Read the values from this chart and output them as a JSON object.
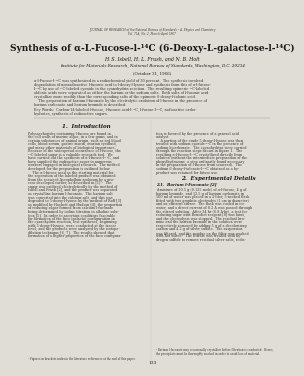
{
  "page_bg": "#e0ddd6",
  "journal_header": "JOURNAL OF RESEARCH of the National Bureau of Standards – A. Physics and Chemistry",
  "journal_subheader": "Vol. 71A, No. 2, March–April 1967",
  "title": "Synthesis of α-L-Fucose-l-¹⁴C (6-Deoxy-L-galactose-l-¹⁴C)",
  "authors": "H. S. Isbell, H. L. Frush, and N. B. Holt",
  "affiliation": "Institute for Materials Research, National Bureau of Standards, Washington, D.C. 20234",
  "date": "(October 31, 1966)",
  "abstract_lines": [
    "α-l-Fucose-l-¹⁴C was synthesized in a radiochemical yield of 30 percent.  The synthesis involved",
    "degradation of nonradioactive l-fuconic acid to l-deoxy-l-lyxose and synthesis from this of α-l-fucose-",
    "l-¹⁴C by use of ¹⁴C-labeled cyanide in the cyanohydrin reaction.  The resulting epimeric ¹⁴C-labeled",
    "aldonic acids were separated as either the barium or the sodium salts.  Both salts of l-fuconic acid",
    "crystallize more readily than the corresponding salts of the epimeric 6-deoxy-l-talonic acid.",
    "    The preparation of barium l-fuconate by the electrolytic oxidation of l-fucose in the presence of",
    "barium carbonate and barium bromide is described."
  ],
  "keywords_line1": "Key Words:  Carbon-14-labeled l-fucose, l-fuconic acid-l-¹⁴C, l-fucose-l-¹⁴C, radioactive carbo-",
  "keywords_line2": "hydrates, synthesis of radioactive sugars.",
  "sec1_title": "1.  Introduction",
  "col1_lines": [
    "Polysaccharides containing l-fucose are found in",
    "the cell walls of marine algae, in a few gums, and in",
    "certain substances of animal origin, such as red blood",
    "cells, blood serum, gastric mucin, ovarian cystfluid,",
    "and many other materials of biological importance.",
    "Because of the widespread occurrence of l-fucose, the",
    "¹⁴C-labeled sugar is a valuable research tool.  We",
    "have carried out the synthesis of α-l-fucose-l-¹⁴C, and",
    "have supplied the radioactive sugar to numerous",
    "workers engaged in biological research.  The method",
    "developed for the preparation is outlined below.",
    "    The α-l-fucose used as the starting material for",
    "the separation of the labeled product was obtained",
    "from the seaweed Ascophyllum nodosum by a pro-",
    "cess developed earlier, as described in [1].¹  The",
    "sugar was oxidized electrolytically by the method of",
    "Isbell and Frush [2], and the product was separated",
    "as crystalline barium l-fuconate.  The barium salt",
    "was converted into the calcium salt, and this was",
    "degraded to 5-deoxy-l-lyxose by the method of Ruff [3]",
    "as modified by Hackett and Hudson [4], the proportion",
    "of reducing sugar formed from calcium l-fuconate",
    "being determined by iodine titration in alkaline solu-",
    "tion [5].  In order to ascertain conditions favorable",
    "for formation of the fuco (galacto) configuration in",
    "the cyanohydrin reaction, test syntheses, beginning",
    "with 5-deoxy-l-lyxose, were conducted at the tracer",
    "level, and the products were analyzed by the isotope-",
    "dilution technique [6, 7].  The results showed that",
    "formation of a higher proportion of the fuco configura-"
  ],
  "col1_footnote": "¹ Figures in brackets indicate the literature references at the end of this paper.",
  "col2_lines_top": [
    "tion is favored by the presence of a general acid",
    "catalyst.",
    "    A portion of the crude 5-deoxy-l-lyxose was then",
    "treated with sodium cyanide-¹⁴C in the presence of",
    "sodium bicarbonate.  The cyanohydrins were carried",
    "through the reaction steps shown in figure 1.  The",
    "resulting α-l-fucose-l-¹⁴C crystallized directly from",
    "solution (without the intermediate preparation of the",
    "phenylhydrazone, a step ordinarily found necessary",
    "in the preparation of l-fucose from seaweed).  The",
    "sodium 6-deoxy-l-talonate-l-¹⁴C obtained as a by-",
    "product was retained for future use."
  ],
  "sec2_title": "2.  Experimental Details",
  "sec21_title": "2.1.  Barium l-Fuconate [2]",
  "col2_lines_bottom": [
    "A mixture of 20.5 g (0.125 mole) of α-l-fucose, 4 g of",
    "barium bromide, and 12.5 g of barium carbonate in",
    "500 ml of water was placed in a 2-liter, 3-necked flask",
    "fitted with two graphite electrodes (1 cm in diameter)",
    "and an efficient stirrer.  The flask was cooled in ice",
    "water, and a direct current of 0.2 A was passed through",
    "the stirred solution.  After 34 hr (6.8 A-hr), a test for",
    "reducing sugar with Benedict reagent [8] was faint,",
    "and the electrolysis was stopped.  The residual bro-",
    "mine and the barium bromide in the solution were",
    "respectively removed by adding 5 g of a decolorizing",
    "carbon and 4.2 g of silver sulfate.  The suspension",
    "was filtered, and the residue on the filter was washed",
    "with hot water.¹  The filtrate was treated with hy-",
    "drogen sulfide to remove residual silver salts, redis-"
  ],
  "col2_footnote1": "¹ Barium l-fuconate may occasionally crystallize before filtration is conducted.  Hence,",
  "col2_footnote2": "the precipitate must be thoroughly washed in order to avoid loss of material.",
  "page_number": "133",
  "text_color": "#1a1818",
  "faint_color": "#3a3535"
}
